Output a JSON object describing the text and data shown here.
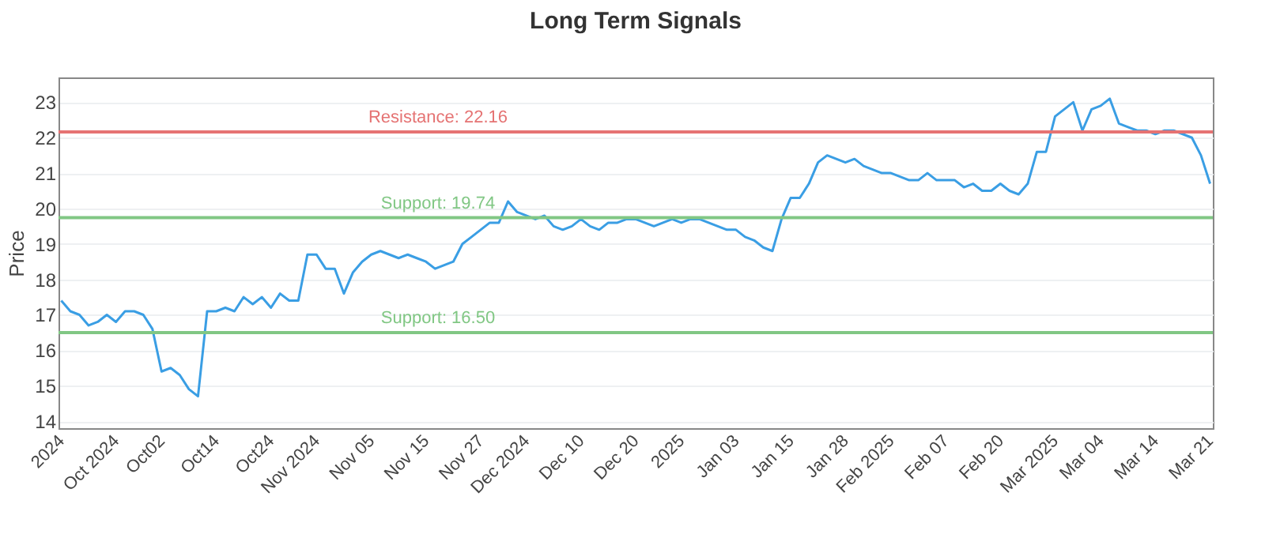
{
  "chart_data": {
    "type": "line",
    "title": "Long Term Signals",
    "ylabel": "Price",
    "categories": [
      "2024",
      null,
      null,
      null,
      null,
      null,
      "Oct 2024",
      null,
      null,
      null,
      null,
      "Oct02",
      null,
      null,
      null,
      null,
      null,
      "Oct14",
      null,
      null,
      null,
      null,
      null,
      "Oct24",
      null,
      null,
      null,
      null,
      "Nov 2024",
      null,
      null,
      null,
      null,
      null,
      "Nov 05",
      null,
      null,
      null,
      null,
      null,
      "Nov 15",
      null,
      null,
      null,
      null,
      null,
      "Nov 27",
      null,
      null,
      null,
      null,
      "Dec 2024",
      null,
      null,
      null,
      null,
      null,
      "Dec 10",
      null,
      null,
      null,
      null,
      null,
      "Dec 20",
      null,
      null,
      null,
      null,
      "2025",
      null,
      null,
      null,
      null,
      null,
      "Jan 03",
      null,
      null,
      null,
      null,
      null,
      "Jan 15",
      null,
      null,
      null,
      null,
      null,
      "Jan 28",
      null,
      null,
      null,
      null,
      "Feb 2025",
      null,
      null,
      null,
      null,
      null,
      "Feb 07",
      null,
      null,
      null,
      null,
      null,
      "Feb 20",
      null,
      null,
      null,
      null,
      null,
      "Mar 2025",
      null,
      null,
      null,
      null,
      "Mar 04",
      null,
      null,
      null,
      null,
      null,
      "Mar 14",
      null,
      null,
      null,
      null,
      null,
      "Mar 21"
    ],
    "series": [
      {
        "color": "#3a9ee4",
        "values": [
          17.4,
          17.1,
          17.0,
          16.7,
          16.8,
          17.0,
          16.8,
          17.1,
          17.1,
          17.0,
          16.6,
          15.4,
          15.5,
          15.3,
          14.9,
          14.7,
          17.1,
          17.1,
          17.2,
          17.1,
          17.5,
          17.3,
          17.5,
          17.2,
          17.6,
          17.4,
          17.4,
          18.7,
          18.7,
          18.3,
          18.3,
          17.6,
          18.2,
          18.5,
          18.7,
          18.8,
          18.7,
          18.6,
          18.7,
          18.6,
          18.5,
          18.3,
          18.4,
          18.5,
          19.0,
          19.2,
          19.4,
          19.6,
          19.6,
          20.2,
          19.9,
          19.8,
          19.7,
          19.8,
          19.5,
          19.4,
          19.5,
          19.7,
          19.5,
          19.4,
          19.6,
          19.6,
          19.7,
          19.7,
          19.6,
          19.5,
          19.6,
          19.7,
          19.6,
          19.7,
          19.7,
          19.6,
          19.5,
          19.4,
          19.4,
          19.2,
          19.1,
          18.9,
          18.8,
          19.7,
          20.3,
          20.3,
          20.7,
          21.3,
          21.5,
          21.4,
          21.3,
          21.4,
          21.2,
          21.1,
          21.0,
          21.0,
          20.9,
          20.8,
          20.8,
          21.0,
          20.8,
          20.8,
          20.8,
          20.6,
          20.7,
          20.5,
          20.5,
          20.7,
          20.5,
          20.4,
          20.7,
          21.6,
          21.6,
          22.6,
          22.8,
          23.0,
          22.2,
          22.8,
          22.9,
          23.1,
          22.4,
          22.3,
          22.2,
          22.2,
          22.1,
          22.2,
          22.2,
          22.1,
          22.0,
          21.5,
          20.7
        ]
      }
    ],
    "ylim": [
      13.8,
      23.7
    ],
    "yticks": [
      14,
      15,
      16,
      17,
      18,
      19,
      20,
      21,
      22,
      23
    ],
    "grid": "y",
    "marker": "none",
    "line_style": "solid",
    "ref_lines": [
      {
        "axis": "y",
        "value": 22.16,
        "label": "Resistance: 22.16",
        "color": "#e57373"
      },
      {
        "axis": "y",
        "value": 19.74,
        "label": "Support: 19.74",
        "color": "#81c784"
      },
      {
        "axis": "y",
        "value": 16.5,
        "label": "Support: 16.50",
        "color": "#81c784"
      }
    ]
  }
}
